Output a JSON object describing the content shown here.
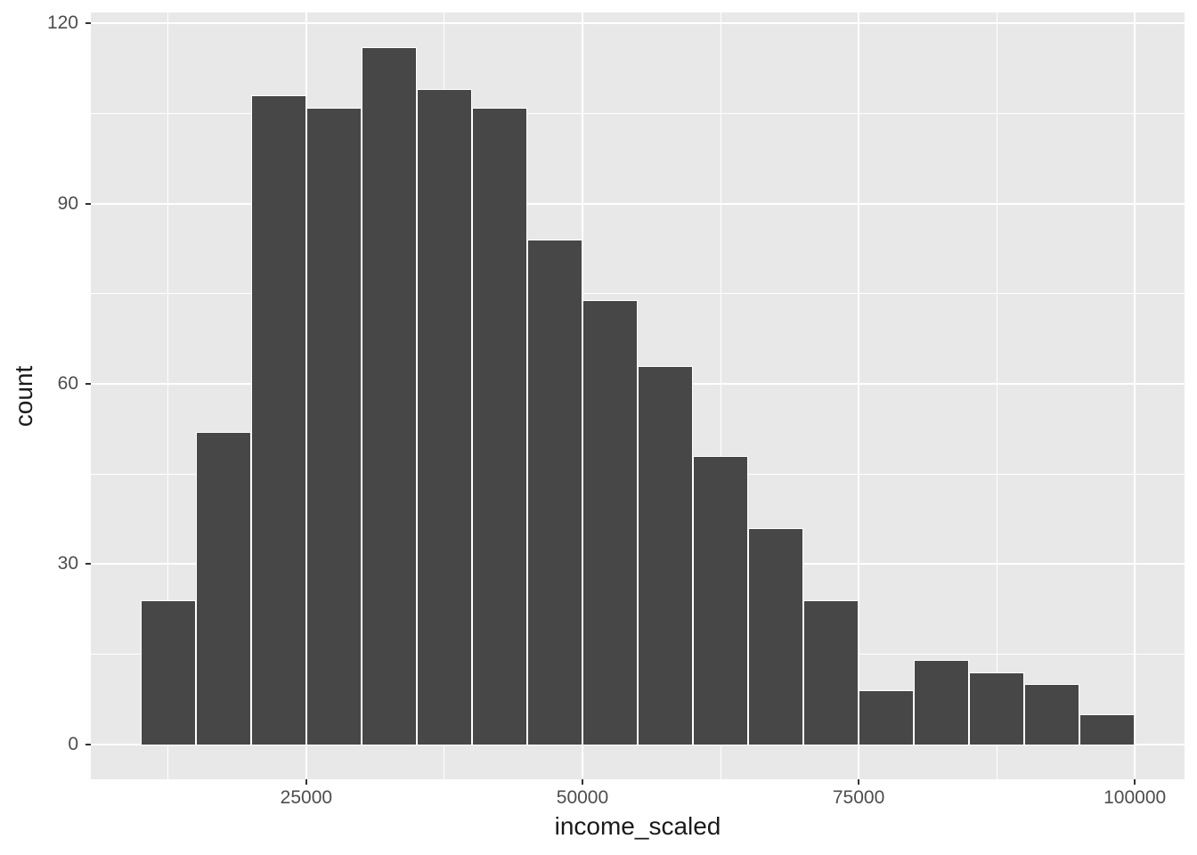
{
  "chart_data": {
    "type": "bar",
    "subtype": "histogram",
    "title": "",
    "xlabel": "income_scaled",
    "ylabel": "count",
    "bin_start": 10000,
    "bin_width": 5000,
    "counts": [
      24,
      52,
      108,
      106,
      116,
      109,
      106,
      84,
      74,
      63,
      48,
      36,
      24,
      9,
      14,
      12,
      10,
      5
    ],
    "bin_edges": [
      10000,
      15000,
      20000,
      25000,
      30000,
      35000,
      40000,
      45000,
      50000,
      55000,
      60000,
      65000,
      70000,
      75000,
      80000,
      85000,
      90000,
      95000,
      100000
    ],
    "total_count": 1000,
    "x_major_ticks": [
      25000,
      50000,
      75000,
      100000
    ],
    "x_major_tick_labels": [
      "25000",
      "50000",
      "75000",
      "100000"
    ],
    "x_minor_ticks": [
      12500,
      37500,
      62500,
      87500
    ],
    "y_major_ticks": [
      0,
      30,
      60,
      90,
      120
    ],
    "y_major_tick_labels": [
      "0",
      "30",
      "60",
      "90",
      "120"
    ],
    "y_minor_ticks": [
      15,
      45,
      75,
      105
    ],
    "xlim": [
      5500,
      104500
    ],
    "ylim": [
      -5.8,
      121.8
    ],
    "grid": "on",
    "legend": "none",
    "colors": {
      "bar_fill": "#474747",
      "bar_stroke": "#FFFFFF",
      "panel_background": "#E8E8E8",
      "gridline": "#FFFFFF",
      "tick_text": "#4D4D4D",
      "axis_title_text": "#1A1A1A",
      "tick_mark": "#333333",
      "figure_background": "#FFFFFF"
    }
  }
}
